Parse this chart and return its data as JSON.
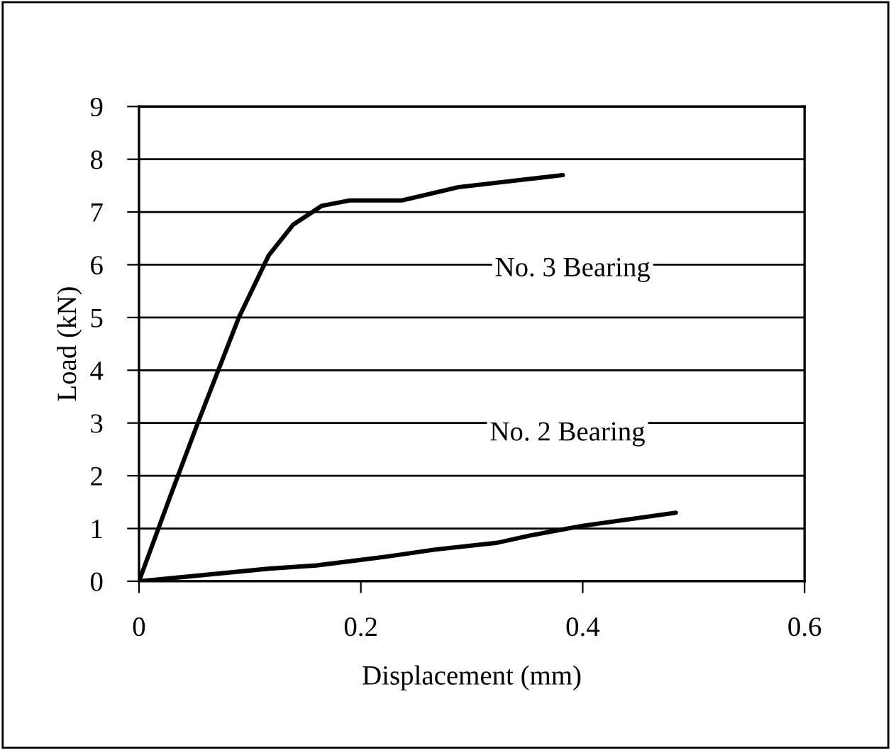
{
  "chart_data": {
    "type": "line",
    "xlabel": "Displacement (mm)",
    "ylabel": "Load (kN)",
    "xlim": [
      0,
      0.6
    ],
    "xticks": [
      0,
      0.2,
      0.4,
      0.6
    ],
    "ylim": [
      0,
      9
    ],
    "yticks": [
      0,
      1,
      2,
      3,
      4,
      5,
      6,
      7,
      8,
      9
    ],
    "grid": "y",
    "marker": "none",
    "line_style": "solid",
    "series": [
      {
        "name": "No. 3 Bearing",
        "color": "#000000",
        "x": [
          0,
          0.028,
          0.053,
          0.09,
          0.117,
          0.139,
          0.165,
          0.19,
          0.237,
          0.288,
          0.382
        ],
        "values": [
          0,
          1.6,
          3,
          5,
          6.18,
          6.76,
          7.12,
          7.22,
          7.22,
          7.47,
          7.7
        ]
      },
      {
        "name": "No. 2 Bearing",
        "color": "#000000",
        "x": [
          0,
          0.1175,
          0.16,
          0.224,
          0.267,
          0.323,
          0.353,
          0.4,
          0.484
        ],
        "values": [
          0,
          0.24,
          0.3,
          0.47,
          0.6,
          0.73,
          0.87,
          1.05,
          1.3
        ]
      }
    ]
  }
}
